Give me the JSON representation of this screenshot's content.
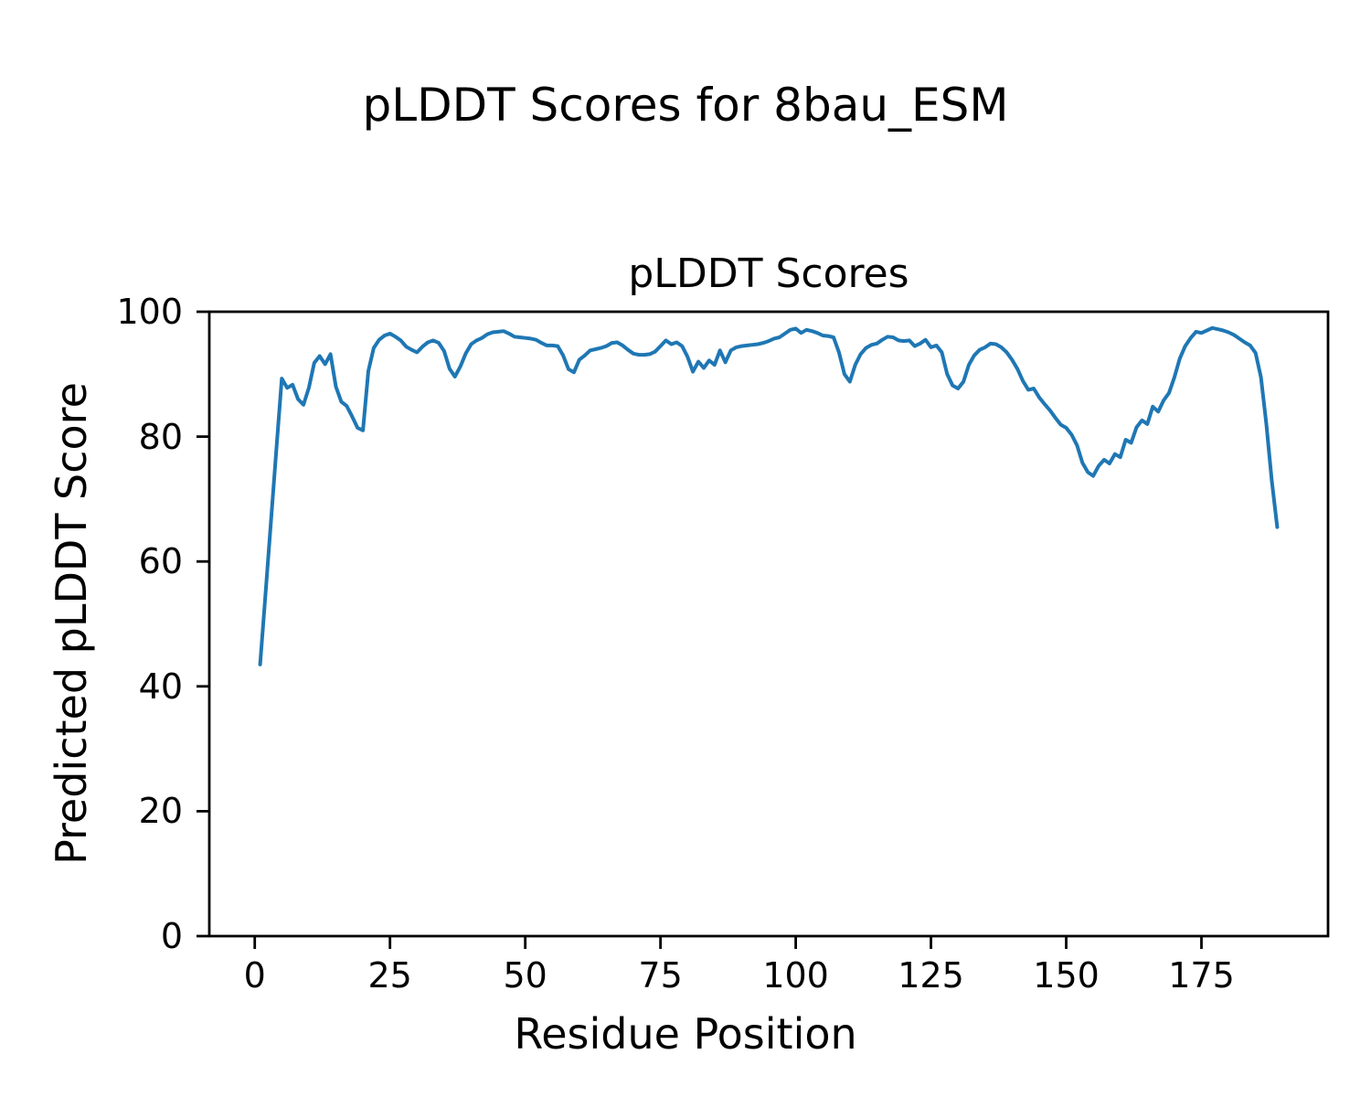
{
  "figure": {
    "title": "pLDDT Scores for 8bau_ESM",
    "background": "#ffffff"
  },
  "axes": {
    "title": "pLDDT Scores",
    "xlabel": "Residue Position",
    "ylabel": "Predicted pLDDT Score"
  },
  "chart_data": {
    "type": "line",
    "title": "pLDDT Scores",
    "xlabel": "Residue Position",
    "ylabel": "Predicted pLDDT Score",
    "xlim": [
      -8.4,
      198.4
    ],
    "ylim": [
      0,
      100
    ],
    "xticks": [
      0,
      25,
      50,
      75,
      100,
      125,
      150,
      175
    ],
    "yticks": [
      0,
      20,
      40,
      60,
      80,
      100
    ],
    "grid": false,
    "legend_position": "none",
    "line_color": "#1f77b4",
    "axis_color": "#000000",
    "series": [
      {
        "name": "pLDDT",
        "x_start": 1,
        "x_step": 1,
        "values": [
          43.5,
          55.0,
          66.5,
          78.0,
          89.3,
          87.8,
          88.3,
          86.0,
          85.1,
          87.8,
          91.8,
          92.9,
          91.6,
          93.2,
          88.0,
          85.6,
          84.9,
          83.2,
          81.4,
          81.0,
          90.5,
          94.2,
          95.5,
          96.2,
          96.5,
          96.0,
          95.4,
          94.4,
          93.9,
          93.5,
          94.4,
          95.1,
          95.4,
          95.0,
          93.7,
          90.9,
          89.6,
          91.2,
          93.3,
          94.8,
          95.4,
          95.8,
          96.4,
          96.7,
          96.8,
          96.9,
          96.5,
          96.0,
          95.9,
          95.8,
          95.7,
          95.5,
          95.0,
          94.6,
          94.6,
          94.5,
          93.0,
          90.8,
          90.3,
          92.3,
          93.0,
          93.8,
          94.0,
          94.2,
          94.5,
          95.0,
          95.1,
          94.6,
          93.9,
          93.3,
          93.1,
          93.1,
          93.2,
          93.6,
          94.5,
          95.4,
          94.8,
          95.1,
          94.5,
          92.8,
          90.4,
          92.0,
          91.0,
          92.2,
          91.5,
          93.8,
          91.9,
          93.8,
          94.3,
          94.5,
          94.6,
          94.7,
          94.8,
          95.0,
          95.3,
          95.7,
          95.9,
          96.5,
          97.1,
          97.3,
          96.6,
          97.1,
          96.9,
          96.6,
          96.2,
          96.1,
          95.9,
          93.5,
          90.0,
          88.8,
          91.5,
          93.2,
          94.2,
          94.7,
          94.9,
          95.5,
          96.0,
          95.9,
          95.4,
          95.3,
          95.4,
          94.5,
          94.9,
          95.5,
          94.3,
          94.6,
          93.5,
          90.0,
          88.2,
          87.7,
          88.8,
          91.5,
          93.0,
          93.9,
          94.3,
          94.9,
          94.8,
          94.3,
          93.5,
          92.3,
          90.8,
          88.9,
          87.5,
          87.7,
          86.3,
          85.2,
          84.2,
          83.0,
          81.9,
          81.4,
          80.3,
          78.6,
          75.8,
          74.3,
          73.7,
          75.3,
          76.3,
          75.7,
          77.2,
          76.7,
          79.5,
          79.0,
          81.5,
          82.6,
          82.0,
          84.8,
          84.0,
          85.8,
          87.0,
          89.5,
          92.5,
          94.5,
          95.8,
          96.8,
          96.6,
          97.0,
          97.4,
          97.2,
          97.0,
          96.7,
          96.3,
          95.7,
          95.1,
          94.6,
          93.4,
          89.5,
          82.0,
          73.0,
          65.5
        ]
      }
    ]
  }
}
